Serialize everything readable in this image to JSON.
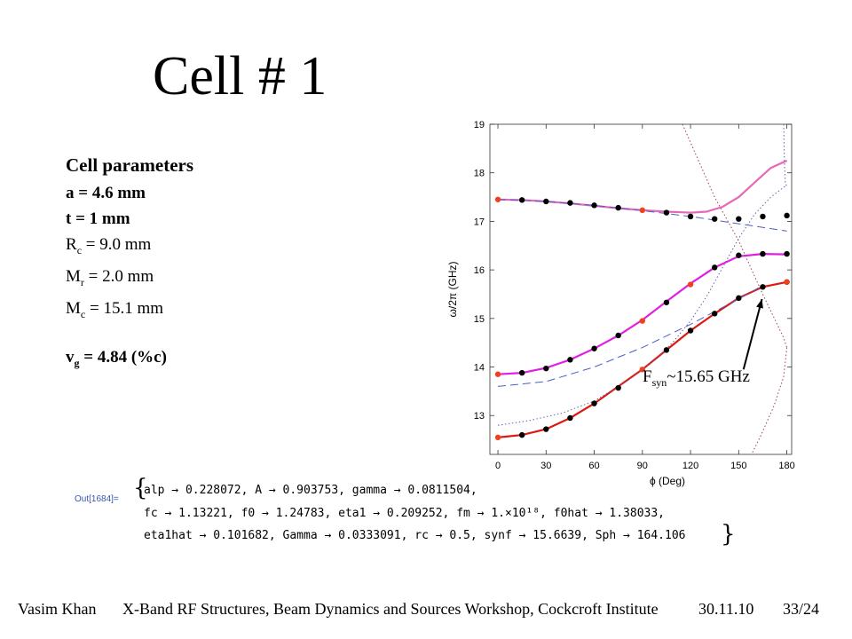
{
  "title": "Cell # 1",
  "params": {
    "header": "Cell parameters",
    "a": "a = 4.6 mm",
    "t": "t = 1 mm",
    "rc_main": "R",
    "rc_sub": "c",
    "rc_rest": " = 9.0 mm",
    "mr_main": "M",
    "mr_sub": "r",
    "mr_rest": " = 2.0 mm",
    "mc_main": "M",
    "mc_sub": "c",
    "mc_rest": " = 15.1 mm",
    "vg_main": "v",
    "vg_sub": "g",
    "vg_rest": " = 4.84 (%c)"
  },
  "annotation": {
    "main": "F",
    "sub": "syn",
    "rest": "~15.65 GHz"
  },
  "output": {
    "label": "Out[1684]=",
    "open_brace": "{",
    "close_brace": "}",
    "line1": "alp → 0.228072, A → 0.903753, gamma → 0.0811504,",
    "line2": "fc → 1.13221, f0 → 1.24783, eta1 → 0.209252, fm → 1.×10¹⁸, f0hat → 1.38033,",
    "line3": "eta1hat → 0.101682, Gamma → 0.0333091, rc → 0.5, synf → 15.6639, Sph → 164.106"
  },
  "footer": {
    "author": "Vasim Khan",
    "event": "X-Band RF Structures, Beam Dynamics and Sources Workshop, Cockcroft Institute",
    "date": "30.11.10",
    "page": "33/24"
  },
  "chart_data": {
    "type": "line",
    "xlabel": "ϕ (Deg)",
    "ylabel": "ω/2π (GHz)",
    "xlim": [
      -5,
      183
    ],
    "ylim": [
      12.2,
      19
    ],
    "xticks": [
      0,
      30,
      60,
      90,
      120,
      150,
      180
    ],
    "yticks": [
      13,
      14,
      15,
      16,
      17,
      18,
      19
    ],
    "grid": false,
    "colors": {
      "red": "#dd1a10",
      "magenta": "#e020e0",
      "pink": "#e868b8",
      "dashed": "#4a5fc8",
      "dotted": "#6a5fa8",
      "dotted_red": "#a04050",
      "black": "#000000",
      "red_marker": "#f04020"
    },
    "series": [
      {
        "style": "solid",
        "color": "red",
        "x": [
          0,
          15,
          30,
          45,
          60,
          75,
          90,
          105,
          120,
          135,
          150,
          165,
          180
        ],
        "y": [
          12.55,
          12.6,
          12.72,
          12.95,
          13.25,
          13.6,
          13.95,
          14.35,
          14.75,
          15.1,
          15.42,
          15.65,
          15.75
        ]
      },
      {
        "style": "solid",
        "color": "magenta",
        "x": [
          0,
          15,
          30,
          45,
          60,
          75,
          90,
          105,
          120,
          135,
          150,
          165,
          180
        ],
        "y": [
          13.85,
          13.88,
          13.98,
          14.15,
          14.38,
          14.65,
          14.97,
          15.35,
          15.72,
          16.05,
          16.28,
          16.33,
          16.32
        ]
      },
      {
        "style": "solid",
        "color": "pink",
        "x": [
          0,
          15,
          30,
          45,
          60,
          75,
          90,
          105,
          120,
          130,
          140,
          150,
          160,
          170,
          180
        ],
        "y": [
          17.45,
          17.44,
          17.41,
          17.37,
          17.32,
          17.27,
          17.23,
          17.2,
          17.18,
          17.2,
          17.3,
          17.5,
          17.8,
          18.1,
          18.25
        ]
      },
      {
        "style": "dashed",
        "color": "dashed",
        "x": [
          0,
          30,
          60,
          90,
          120,
          150,
          180
        ],
        "y": [
          17.45,
          17.41,
          17.33,
          17.22,
          17.1,
          16.95,
          16.8
        ]
      },
      {
        "style": "dashed",
        "color": "dashed",
        "x": [
          0,
          30,
          60,
          90,
          120,
          150,
          165
        ],
        "y": [
          13.6,
          13.7,
          14.0,
          14.4,
          14.88,
          15.4,
          15.68
        ]
      },
      {
        "style": "dotted",
        "color": "dotted",
        "x": [
          0,
          20,
          40,
          60,
          80,
          100,
          110,
          120,
          130,
          140,
          150,
          160,
          170,
          180
        ],
        "y": [
          12.8,
          12.9,
          13.05,
          13.3,
          13.7,
          14.2,
          14.55,
          14.95,
          15.45,
          16.05,
          16.65,
          17.15,
          17.5,
          17.75
        ]
      },
      {
        "style": "dotted",
        "color": "dotted_red",
        "x": [
          115,
          135,
          150,
          165,
          178,
          180
        ],
        "y": [
          19.0,
          17.5,
          16.6,
          15.5,
          14.6,
          14.4
        ]
      },
      {
        "style": "dotted",
        "color": "dotted_red",
        "x": [
          180,
          178,
          172,
          164,
          158
        ],
        "y": [
          14.4,
          13.8,
          13.2,
          12.6,
          12.2
        ]
      },
      {
        "style": "dotted",
        "color": "dotted",
        "x": [
          178,
          178.5,
          179,
          180
        ],
        "y": [
          19.0,
          18.2,
          17.8,
          17.7
        ]
      },
      {
        "style": "markers",
        "color": "black",
        "x": [
          15,
          30,
          45,
          60,
          75,
          105,
          120,
          135,
          150,
          165,
          180
        ],
        "y": [
          12.6,
          12.72,
          12.95,
          13.25,
          13.57,
          14.35,
          14.75,
          15.1,
          15.42,
          15.65,
          15.75
        ]
      },
      {
        "style": "markers",
        "color": "black",
        "x": [
          15,
          30,
          45,
          60,
          75,
          105,
          135,
          150,
          165,
          180
        ],
        "y": [
          13.88,
          13.97,
          14.15,
          14.38,
          14.65,
          15.33,
          16.05,
          16.3,
          16.33,
          16.33
        ]
      },
      {
        "style": "markers",
        "color": "black",
        "x": [
          15,
          30,
          45,
          60,
          75,
          105,
          120,
          135,
          150,
          165,
          180
        ],
        "y": [
          17.44,
          17.41,
          17.38,
          17.33,
          17.28,
          17.18,
          17.1,
          17.05,
          17.05,
          17.1,
          17.12
        ]
      },
      {
        "style": "markers",
        "color": "red_marker",
        "x": [
          0,
          90,
          180
        ],
        "y": [
          12.55,
          13.95,
          15.75
        ]
      },
      {
        "style": "markers",
        "color": "red_marker",
        "x": [
          0,
          90,
          120
        ],
        "y": [
          13.85,
          14.95,
          15.7
        ]
      },
      {
        "style": "markers",
        "color": "red_marker",
        "x": [
          0,
          90
        ],
        "y": [
          17.45,
          17.23
        ]
      }
    ],
    "arrow": {
      "from": [
        153,
        13.95
      ],
      "to": [
        164.5,
        15.4
      ]
    }
  }
}
